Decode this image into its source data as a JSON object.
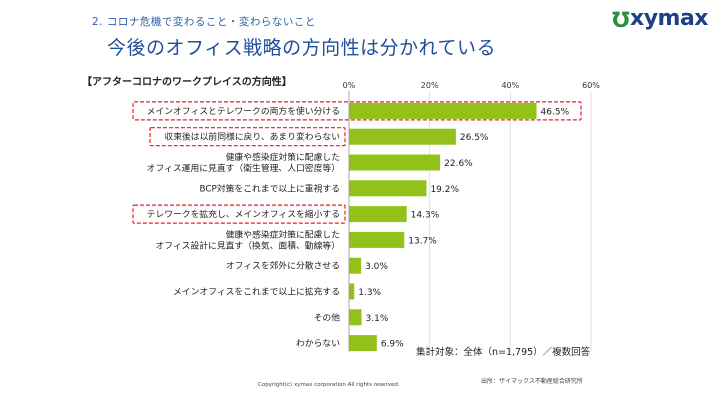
{
  "header": {
    "section": "2. コロナ危機で変わること・変わらないこと",
    "title": "今後のオフィス戦略の方向性は分かれている",
    "logo_text": "xymax",
    "logo_mark": "℧"
  },
  "chart_data": {
    "type": "bar",
    "orientation": "horizontal",
    "title": "【アフターコロナのワークプレイスの方向性】",
    "categories": [
      [
        "メインオフィスとテレワークの両方を使い分ける"
      ],
      [
        "収束後は以前同様に戻り、あまり変わらない"
      ],
      [
        "健康や感染症対策に配慮した",
        "オフィス運用に見直す（衛生管理、人口密度等）"
      ],
      [
        "BCP対策をこれまで以上に重視する"
      ],
      [
        "テレワークを拡充し、メインオフィスを縮小する"
      ],
      [
        "健康や感染症対策に配慮した",
        "オフィス設計に見直す（換気、面積、動線等）"
      ],
      [
        "オフィスを郊外に分散させる"
      ],
      [
        "メインオフィスをこれまで以上に拡充する"
      ],
      [
        "その他"
      ],
      [
        "わからない"
      ]
    ],
    "values": [
      46.5,
      26.5,
      22.6,
      19.2,
      14.3,
      13.7,
      3.0,
      1.3,
      3.1,
      6.9
    ],
    "value_labels": [
      "46.5%",
      "26.5%",
      "22.6%",
      "19.2%",
      "14.3%",
      "13.7%",
      "3.0%",
      "1.3%",
      "3.1%",
      "6.9%"
    ],
    "highlighted": [
      0,
      1,
      4
    ],
    "xlim": [
      0,
      60
    ],
    "xticks": [
      0,
      20,
      40,
      60
    ],
    "xtick_labels": [
      "0%",
      "20%",
      "40%",
      "60%"
    ],
    "bar_color": "#92c21a",
    "highlight_color": "#e8202a",
    "note": "集計対象：全体（n=1,795）／複数回答"
  },
  "footer": {
    "copyright": "Copyright(c) xymax corporation  All rights reserved.",
    "source": "出所：ザイマックス不動産総合研究所"
  }
}
